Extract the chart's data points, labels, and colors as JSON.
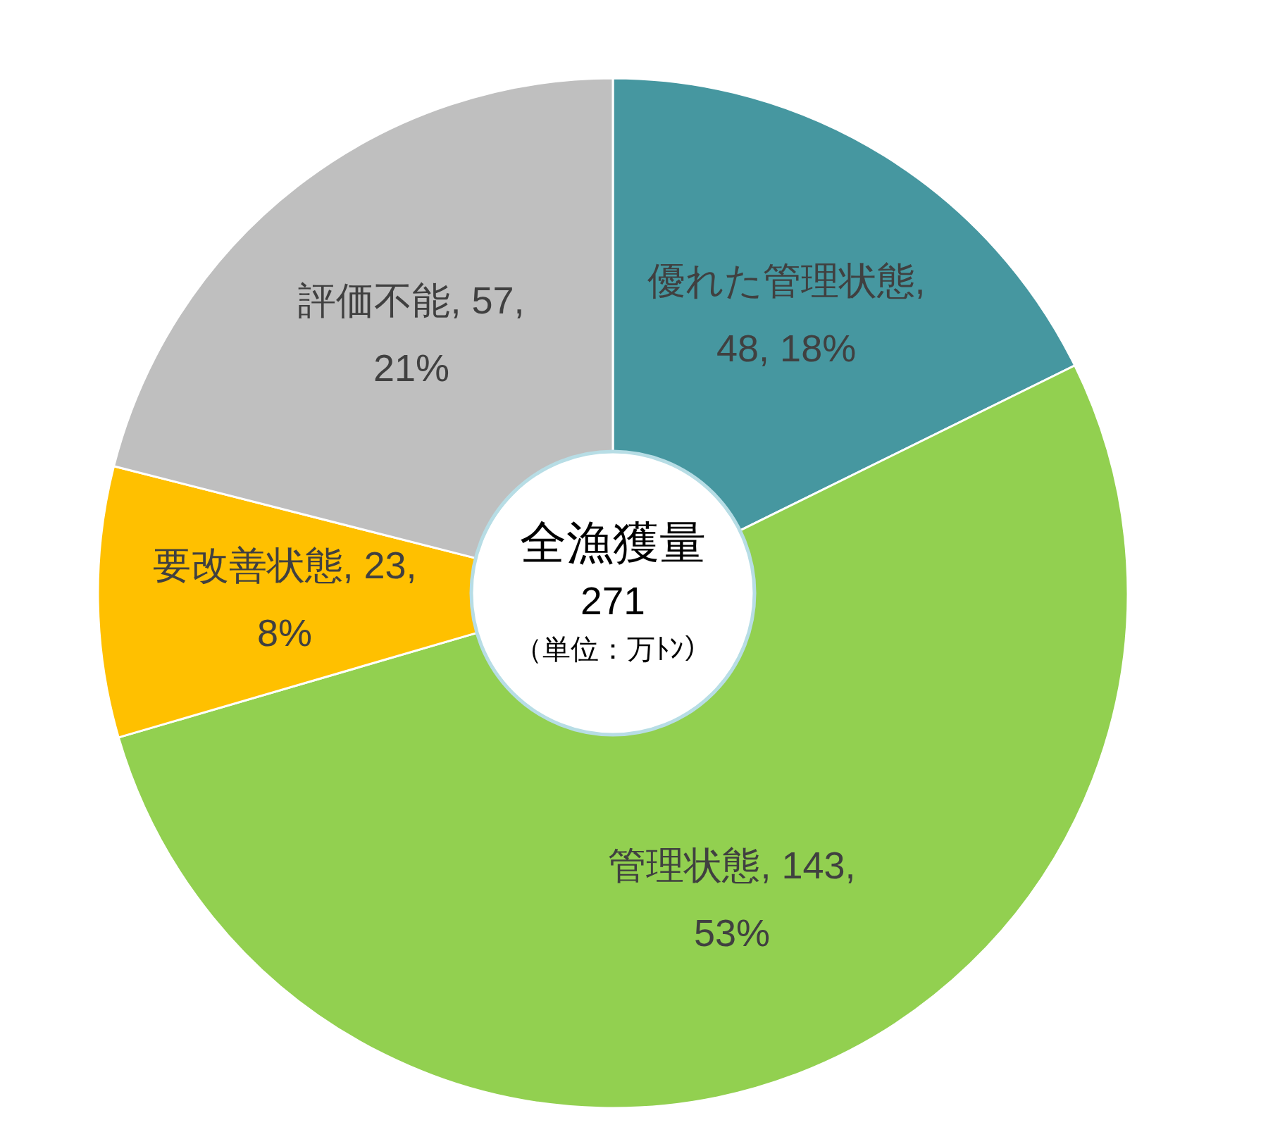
{
  "chart_data": {
    "type": "donut",
    "title": "全漁獲量",
    "annotations": [
      "271",
      "（単位：万ﾄﾝ）"
    ],
    "values": [
      48,
      143,
      23,
      57
    ],
    "colors": [
      "#4697a0",
      "#92d050",
      "#ffc000",
      "#bfbfbf"
    ],
    "value_labels": [
      "優れた管理状態, 48, 18%",
      "管理状態, 143, 53%",
      "要改善状態, 23, 8%",
      "評価不能, 57, 21%"
    ]
  }
}
